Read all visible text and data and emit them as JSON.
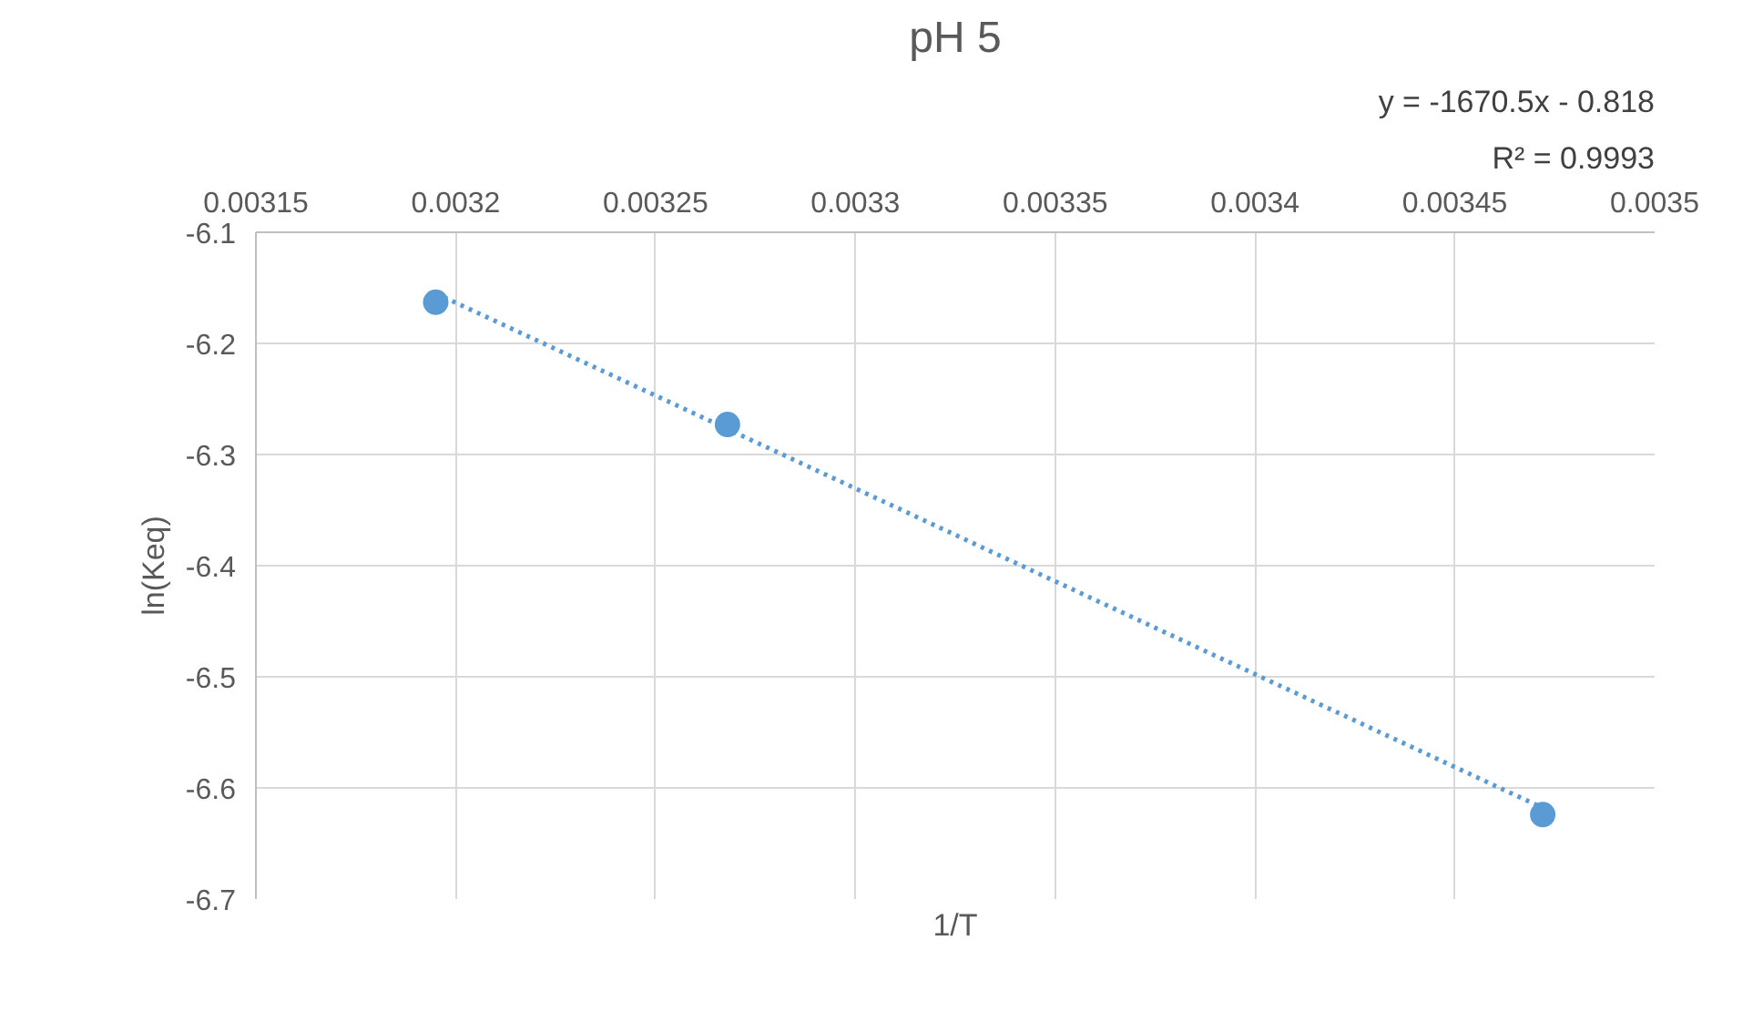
{
  "chart_data": {
    "type": "scatter",
    "title": "pH 5",
    "xlabel": "1/T",
    "ylabel": "ln(Keq)",
    "xlim": [
      0.00315,
      0.0035
    ],
    "ylim": [
      -6.7,
      -6.1
    ],
    "xticks": [
      0.00315,
      0.0032,
      0.00325,
      0.0033,
      0.00335,
      0.0034,
      0.00345,
      0.0035
    ],
    "yticks": [
      -6.7,
      -6.6,
      -6.5,
      -6.4,
      -6.3,
      -6.2,
      -6.1
    ],
    "grid": true,
    "annotations": [
      "y = -1670.5x - 0.818",
      "R² = 0.9993"
    ],
    "series": [
      {
        "color": "#5b9bd5",
        "marker": "circle",
        "x": [
          0.003195,
          0.003268,
          0.003472
        ],
        "values": [
          -6.163,
          -6.273,
          -6.624
        ]
      },
      {
        "type": "line",
        "color": "#5b9bd5",
        "line_style": "dotted",
        "marker": "none",
        "x": [
          0.003195,
          0.003472
        ],
        "values": [
          -6.155,
          -6.618
        ]
      }
    ]
  }
}
